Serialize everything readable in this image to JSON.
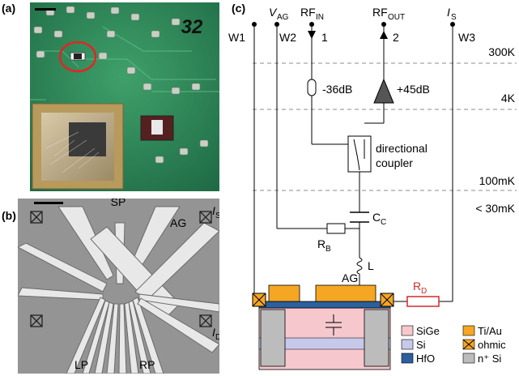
{
  "panels": {
    "a": {
      "label": "(a)",
      "chip_number": "32"
    },
    "b": {
      "label": "(b)",
      "labels": {
        "sp": "SP",
        "is": "I",
        "is_sub": "S",
        "ag": "AG",
        "id": "I",
        "id_sub": "D",
        "lp": "LP",
        "rp": "RP"
      }
    },
    "c": {
      "label": "(c)",
      "top": {
        "vag": "V",
        "vag_sub": "AG",
        "rfin": "RF",
        "rfin_sub": "IN",
        "rfout": "RF",
        "rfout_sub": "OUT",
        "is": "I",
        "is_sub": "S",
        "w1": "W1",
        "w2": "W2",
        "w3": "W3",
        "port1": "1",
        "port2": "2"
      },
      "temps": [
        "300K",
        "4K",
        "100mK",
        "< 30mK"
      ],
      "components": {
        "attenuator": "-36dB",
        "amplifier": "+45dB",
        "coupler_line1": "directional",
        "coupler_line2": "coupler",
        "cc": "C",
        "cc_sub": "C",
        "rb": "R",
        "rb_sub": "B",
        "l": "L",
        "ag": "AG",
        "rd": "R",
        "rd_sub": "D"
      },
      "legend": [
        "SiGe",
        "Ti/Au",
        "Si",
        "ohmic",
        "HfO",
        "n⁺ Si"
      ]
    }
  },
  "colors": {
    "sige": "#f6c8cd",
    "tiau": "#f5a623",
    "si": "#c7c9ea",
    "hfo": "#2c5f9e",
    "nsi": "#bcbcbc",
    "rd": "#d42a2a"
  }
}
